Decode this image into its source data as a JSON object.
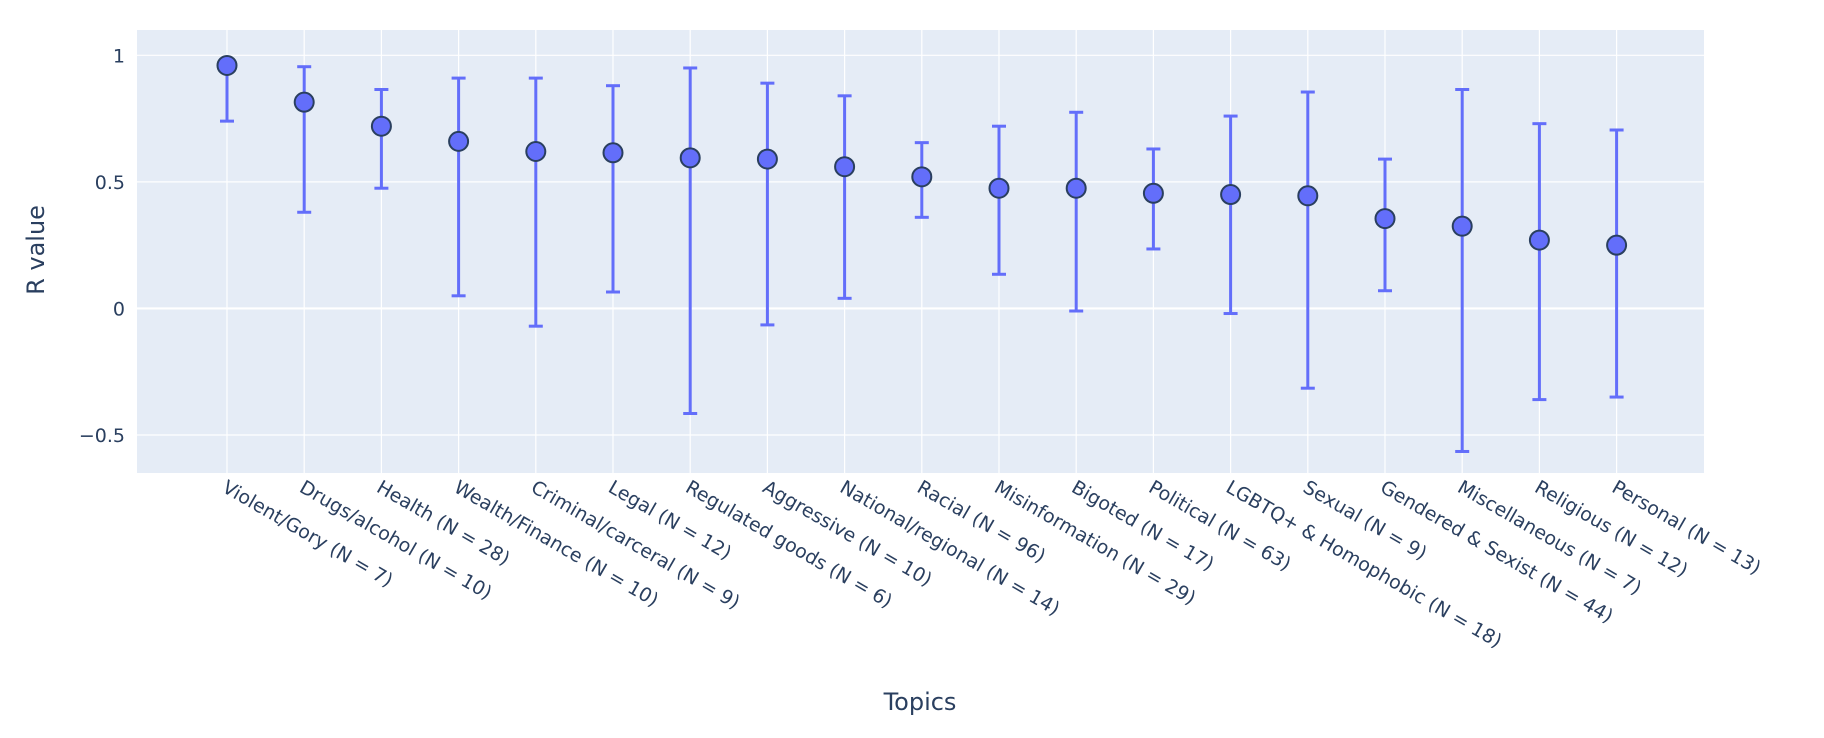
{
  "chart_data": {
    "type": "scatter",
    "title": "",
    "xlabel": "Topics",
    "ylabel": "R value",
    "ylim": [
      -0.65,
      1.1
    ],
    "yticks": [
      -0.5,
      0,
      0.5,
      1
    ],
    "ytick_labels": [
      "−0.5",
      "0",
      "0.5",
      "1"
    ],
    "grid": true,
    "colors": {
      "plot_bg": "#e5ecf6",
      "grid": "#ffffff",
      "marker_fill": "#636efa",
      "marker_edge": "#2a3f5f",
      "error_bar": "#636efa",
      "text": "#2a3f5f"
    },
    "categories": [
      "Violent/Gory (N = 7)",
      "Drugs/alcohol (N = 10)",
      "Health (N = 28)",
      "Wealth/Finance (N = 10)",
      "Criminal/carceral (N = 9)",
      "Legal (N = 12)",
      "Regulated goods (N = 6)",
      "Aggressive (N = 10)",
      "National/regional (N = 14)",
      "Racial (N = 96)",
      "Misinformation (N = 29)",
      "Bigoted (N = 17)",
      "Political (N = 63)",
      "LGBTQ+ & Homophobic (N = 18)",
      "Sexual (N = 9)",
      "Gendered & Sexist (N = 44)",
      "Miscellaneous (N = 7)",
      "Religious (N = 12)",
      "Personal (N = 13)"
    ],
    "series": [
      {
        "values": [
          0.96,
          0.815,
          0.72,
          0.66,
          0.62,
          0.615,
          0.595,
          0.59,
          0.56,
          0.52,
          0.475,
          0.475,
          0.455,
          0.45,
          0.445,
          0.355,
          0.325,
          0.27,
          0.25
        ],
        "error_low": [
          0.74,
          0.38,
          0.475,
          0.05,
          -0.07,
          0.065,
          -0.415,
          -0.065,
          0.04,
          0.36,
          0.135,
          -0.01,
          0.235,
          -0.02,
          -0.315,
          0.07,
          -0.565,
          -0.36,
          -0.35
        ],
        "error_high": [
          0.96,
          0.955,
          0.865,
          0.91,
          0.91,
          0.88,
          0.95,
          0.89,
          0.84,
          0.655,
          0.72,
          0.775,
          0.63,
          0.76,
          0.855,
          0.59,
          0.865,
          0.73,
          0.705
        ]
      }
    ]
  }
}
